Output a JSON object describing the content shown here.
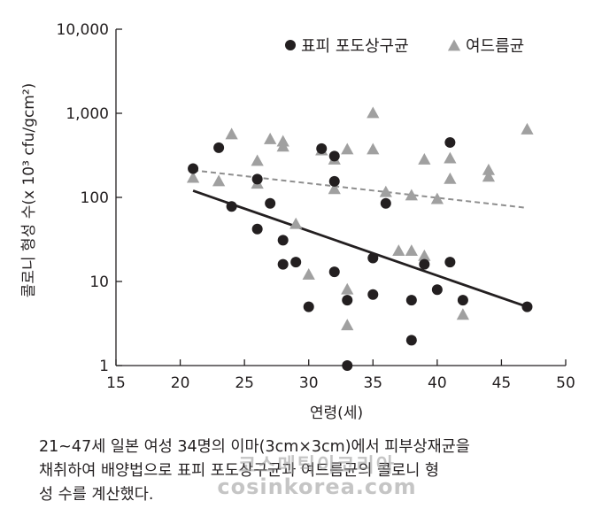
{
  "chart_data": {
    "type": "scatter",
    "xlabel": "연령(세)",
    "ylabel": "콜로니 형성 수(x 10³ cfu/gcm²)",
    "x_ticks": [
      "15",
      "20",
      "25",
      "30",
      "35",
      "40",
      "45",
      "50"
    ],
    "y_ticks": [
      "10,000",
      "1,000",
      "100",
      "10",
      "1"
    ],
    "xlim": [
      15,
      50
    ],
    "ylim": [
      1,
      10000
    ],
    "y_scale": "log",
    "legend_placement": "top-right",
    "series": [
      {
        "name": "표피 포도상구균",
        "marker": "circle",
        "color": "#231f20",
        "trendline": {
          "style": "solid",
          "x": [
            21,
            47
          ],
          "y": [
            120,
            5
          ]
        },
        "points": [
          [
            21,
            220
          ],
          [
            23,
            390
          ],
          [
            24,
            78
          ],
          [
            26,
            165
          ],
          [
            26,
            42
          ],
          [
            27,
            85
          ],
          [
            28,
            31
          ],
          [
            28,
            16
          ],
          [
            29,
            17
          ],
          [
            30,
            5
          ],
          [
            31,
            380
          ],
          [
            32,
            310
          ],
          [
            32,
            155
          ],
          [
            32,
            13
          ],
          [
            33,
            6
          ],
          [
            33,
            1
          ],
          [
            35,
            19
          ],
          [
            35,
            7
          ],
          [
            36,
            85
          ],
          [
            38,
            6
          ],
          [
            38,
            2
          ],
          [
            39,
            16
          ],
          [
            40,
            8
          ],
          [
            41,
            450
          ],
          [
            41,
            17
          ],
          [
            42,
            6
          ],
          [
            47,
            5
          ]
        ]
      },
      {
        "name": "여드름균",
        "marker": "triangle",
        "color": "#a0a0a0",
        "trendline": {
          "style": "dashed",
          "x": [
            21,
            47
          ],
          "y": [
            210,
            75
          ]
        },
        "points": [
          [
            21,
            170
          ],
          [
            23,
            155
          ],
          [
            24,
            560
          ],
          [
            26,
            270
          ],
          [
            26,
            145
          ],
          [
            27,
            490
          ],
          [
            28,
            460
          ],
          [
            28,
            400
          ],
          [
            29,
            48
          ],
          [
            30,
            12
          ],
          [
            31,
            360
          ],
          [
            32,
            280
          ],
          [
            32,
            125
          ],
          [
            33,
            370
          ],
          [
            33,
            8
          ],
          [
            33,
            3
          ],
          [
            35,
            1000
          ],
          [
            35,
            370
          ],
          [
            36,
            115
          ],
          [
            37,
            23
          ],
          [
            38,
            105
          ],
          [
            38,
            23
          ],
          [
            39,
            280
          ],
          [
            39,
            20
          ],
          [
            40,
            95
          ],
          [
            41,
            290
          ],
          [
            41,
            165
          ],
          [
            42,
            4
          ],
          [
            44,
            210
          ],
          [
            44,
            175
          ],
          [
            47,
            640
          ]
        ]
      }
    ]
  },
  "caption": {
    "line1": "21~47세 일본 여성 34명의 이마(3cm×3cm)에서 피부상재균을",
    "line2": "채취하여 배양법으로 표피 포도상구균과 여드름균의 콜로니 형",
    "line3": "성 수를 계산했다."
  },
  "watermark": {
    "line1": "코스메틱이코리아",
    "line2": "cosinkorea.com"
  }
}
